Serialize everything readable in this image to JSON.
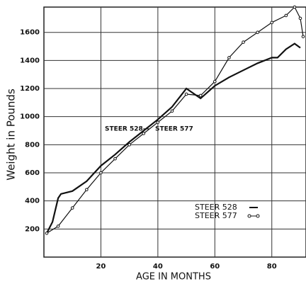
{
  "chart_data": {
    "type": "line",
    "xlabel": "AGE IN MONTHS",
    "ylabel": "Weight in Pounds",
    "xlim": [
      0,
      92
    ],
    "xticks": [
      20,
      40,
      60,
      80
    ],
    "ylim": [
      0,
      1780
    ],
    "yticks": [
      200,
      400,
      600,
      800,
      1000,
      1200,
      1400,
      1600
    ],
    "grid": true,
    "legend": "lower right",
    "annotations": [
      "STEER 528—",
      "STEER 577"
    ],
    "series": [
      {
        "name": "STEER 528",
        "color": "#111111",
        "x": [
          1,
          3,
          5,
          6,
          10,
          15,
          20,
          25,
          30,
          35,
          40,
          45,
          50,
          55,
          60,
          65,
          70,
          75,
          80,
          82,
          85,
          88,
          90
        ],
        "values": [
          170,
          250,
          420,
          450,
          470,
          540,
          650,
          730,
          820,
          900,
          980,
          1070,
          1200,
          1130,
          1220,
          1280,
          1330,
          1380,
          1420,
          1420,
          1480,
          1520,
          1490
        ]
      },
      {
        "name": "STEER 577",
        "color": "#111111",
        "x": [
          1,
          5,
          10,
          15,
          20,
          25,
          30,
          35,
          40,
          45,
          50,
          55,
          60,
          65,
          70,
          75,
          80,
          85,
          88,
          90,
          91
        ],
        "values": [
          170,
          220,
          350,
          480,
          600,
          700,
          800,
          880,
          960,
          1040,
          1160,
          1150,
          1250,
          1420,
          1530,
          1600,
          1670,
          1720,
          1780,
          1700,
          1570
        ]
      }
    ]
  }
}
